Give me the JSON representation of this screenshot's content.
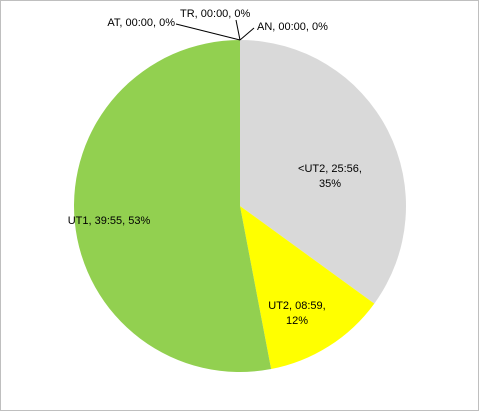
{
  "chart_data": {
    "type": "pie",
    "labels": [
      "AN, 00:00, 0%",
      "<UT2, 25:56, 35%",
      "UT2, 08:59, 12%",
      "UT1, 39:55, 53%",
      "TR, 00:00, 0%",
      "AT, 00:00, 0%"
    ],
    "values": [
      0,
      35,
      12,
      53,
      0,
      0
    ],
    "colors": [
      "#4f81bd",
      "#d9d9d9",
      "#ffff00",
      "#92d050",
      "#8064a2",
      "#4bacc6"
    ]
  }
}
